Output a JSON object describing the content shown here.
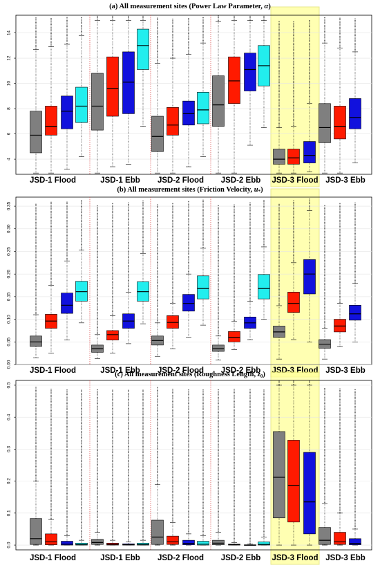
{
  "colors": {
    "gray": "#7f7f7f",
    "red": "#ff1a00",
    "blue": "#1111dd",
    "cyan": "#22eeee",
    "highlight_fill": "#ffff99",
    "highlight_stroke": "#e0e066",
    "separator": "#dd5555"
  },
  "chart_data": [
    {
      "type": "box",
      "title": "(a) All measurement sites (Power Law Parameter, ",
      "title_symbol": "α",
      "title_end": ")",
      "groups": [
        "JSD-1 Flood",
        "JSD-1 Ebb",
        "JSD-2 Flood",
        "JSD-2 Ebb",
        "JSD-3 Flood",
        "JSD-3 Ebb"
      ],
      "highlight_group": "JSD-3 Flood",
      "ylim": [
        2.8,
        15.4
      ],
      "yticks": [
        4,
        6,
        8,
        10,
        12,
        14
      ],
      "yticklabels": [
        "4",
        "6",
        "8",
        "10",
        "12",
        "14"
      ],
      "boxes": [
        {
          "group": 0,
          "color": "gray",
          "whisker_low": 2.9,
          "q1": 4.5,
          "median": 5.9,
          "q3": 7.8,
          "whisker_high": 12.7
        },
        {
          "group": 0,
          "color": "red",
          "whisker_low": 2.9,
          "q1": 5.9,
          "median": 6.6,
          "q3": 8.2,
          "whisker_high": 12.9
        },
        {
          "group": 0,
          "color": "blue",
          "whisker_low": 3.2,
          "q1": 6.4,
          "median": 7.8,
          "q3": 9.0,
          "whisker_high": 13.1
        },
        {
          "group": 0,
          "color": "cyan",
          "whisker_low": 4.2,
          "q1": 6.9,
          "median": 8.2,
          "q3": 9.7,
          "whisker_high": 13.8
        },
        {
          "group": 1,
          "color": "gray",
          "whisker_low": 2.9,
          "q1": 6.3,
          "median": 8.2,
          "q3": 10.8,
          "whisker_high": 15.0
        },
        {
          "group": 1,
          "color": "red",
          "whisker_low": 3.4,
          "q1": 7.4,
          "median": 9.6,
          "q3": 12.1,
          "whisker_high": 15.0
        },
        {
          "group": 1,
          "color": "blue",
          "whisker_low": 3.6,
          "q1": 7.6,
          "median": 10.1,
          "q3": 12.5,
          "whisker_high": 15.0
        },
        {
          "group": 1,
          "color": "cyan",
          "whisker_low": 6.6,
          "q1": 11.1,
          "median": 13.0,
          "q3": 14.3,
          "whisker_high": 15.0
        },
        {
          "group": 2,
          "color": "gray",
          "whisker_low": 2.9,
          "q1": 4.6,
          "median": 5.8,
          "q3": 7.4,
          "whisker_high": 11.6
        },
        {
          "group": 2,
          "color": "red",
          "whisker_low": 2.9,
          "q1": 5.9,
          "median": 6.7,
          "q3": 8.1,
          "whisker_high": 12.0
        },
        {
          "group": 2,
          "color": "blue",
          "whisker_low": 3.4,
          "q1": 6.7,
          "median": 7.6,
          "q3": 8.6,
          "whisker_high": 12.3
        },
        {
          "group": 2,
          "color": "cyan",
          "whisker_low": 4.2,
          "q1": 6.8,
          "median": 7.9,
          "q3": 9.3,
          "whisker_high": 13.2
        },
        {
          "group": 3,
          "color": "gray",
          "whisker_low": 2.9,
          "q1": 6.6,
          "median": 8.3,
          "q3": 10.6,
          "whisker_high": 14.9
        },
        {
          "group": 3,
          "color": "red",
          "whisker_low": 2.9,
          "q1": 8.4,
          "median": 10.2,
          "q3": 12.1,
          "whisker_high": 15.0
        },
        {
          "group": 3,
          "color": "blue",
          "whisker_low": 5.1,
          "q1": 9.4,
          "median": 11.1,
          "q3": 12.4,
          "whisker_high": 15.0
        },
        {
          "group": 3,
          "color": "cyan",
          "whisker_low": 6.5,
          "q1": 9.8,
          "median": 11.4,
          "q3": 13.0,
          "whisker_high": 15.0
        },
        {
          "group": 4,
          "color": "gray",
          "whisker_low": 2.9,
          "q1": 3.6,
          "median": 4.0,
          "q3": 4.8,
          "whisker_high": 6.5
        },
        {
          "group": 4,
          "color": "red",
          "whisker_low": 2.9,
          "q1": 3.6,
          "median": 4.1,
          "q3": 4.8,
          "whisker_high": 6.6
        },
        {
          "group": 4,
          "color": "blue",
          "whisker_low": 3.0,
          "q1": 3.7,
          "median": 4.3,
          "q3": 5.4,
          "whisker_high": 8.4
        },
        {
          "group": 5,
          "color": "gray",
          "whisker_low": 2.9,
          "q1": 5.3,
          "median": 6.5,
          "q3": 8.4,
          "whisker_high": 13.2
        },
        {
          "group": 5,
          "color": "red",
          "whisker_low": 2.9,
          "q1": 5.6,
          "median": 6.6,
          "q3": 8.2,
          "whisker_high": 12.8
        },
        {
          "group": 5,
          "color": "blue",
          "whisker_low": 3.7,
          "q1": 6.4,
          "median": 7.3,
          "q3": 8.8,
          "whisker_high": 12.5
        }
      ]
    },
    {
      "type": "box",
      "title": "(b) All measurement sites (Friction Velocity, ",
      "title_symbol": "u",
      "title_end": ")",
      "groups": [
        "JSD-1 Flood",
        "JSD-1 Ebb",
        "JSD-2 Flood",
        "JSD-2 Ebb",
        "JSD-3 Flood",
        "JSD-3 Ebb"
      ],
      "highlight_group": "JSD-3 Flood",
      "ylim": [
        0.0,
        0.37
      ],
      "yticks": [
        0.0,
        0.05,
        0.1,
        0.15,
        0.2,
        0.25,
        0.3,
        0.35
      ],
      "yticklabels": [
        "0.00",
        "0.05",
        "0.10",
        "0.15",
        "0.20",
        "0.25",
        "0.30",
        "0.35"
      ],
      "boxes": [
        {
          "group": 0,
          "color": "gray",
          "whisker_low": 0.015,
          "q1": 0.04,
          "median": 0.05,
          "q3": 0.063,
          "whisker_high": 0.11
        },
        {
          "group": 0,
          "color": "red",
          "whisker_low": 0.025,
          "q1": 0.08,
          "median": 0.096,
          "q3": 0.111,
          "whisker_high": 0.175
        },
        {
          "group": 0,
          "color": "blue",
          "whisker_low": 0.054,
          "q1": 0.113,
          "median": 0.131,
          "q3": 0.158,
          "whisker_high": 0.229
        },
        {
          "group": 0,
          "color": "cyan",
          "whisker_low": 0.092,
          "q1": 0.14,
          "median": 0.161,
          "q3": 0.184,
          "whisker_high": 0.253
        },
        {
          "group": 1,
          "color": "gray",
          "whisker_low": 0.013,
          "q1": 0.027,
          "median": 0.035,
          "q3": 0.043,
          "whisker_high": 0.066
        },
        {
          "group": 1,
          "color": "red",
          "whisker_low": 0.025,
          "q1": 0.054,
          "median": 0.066,
          "q3": 0.075,
          "whisker_high": 0.108
        },
        {
          "group": 1,
          "color": "blue",
          "whisker_low": 0.046,
          "q1": 0.08,
          "median": 0.096,
          "q3": 0.112,
          "whisker_high": 0.16
        },
        {
          "group": 1,
          "color": "cyan",
          "whisker_low": 0.09,
          "q1": 0.14,
          "median": 0.161,
          "q3": 0.183,
          "whisker_high": 0.245
        },
        {
          "group": 2,
          "color": "gray",
          "whisker_low": 0.018,
          "q1": 0.043,
          "median": 0.053,
          "q3": 0.063,
          "whisker_high": 0.092
        },
        {
          "group": 2,
          "color": "red",
          "whisker_low": 0.035,
          "q1": 0.08,
          "median": 0.093,
          "q3": 0.108,
          "whisker_high": 0.135
        },
        {
          "group": 2,
          "color": "blue",
          "whisker_low": 0.06,
          "q1": 0.118,
          "median": 0.135,
          "q3": 0.155,
          "whisker_high": 0.2
        },
        {
          "group": 2,
          "color": "cyan",
          "whisker_low": 0.087,
          "q1": 0.145,
          "median": 0.168,
          "q3": 0.196,
          "whisker_high": 0.257
        },
        {
          "group": 3,
          "color": "gray",
          "whisker_low": 0.01,
          "q1": 0.029,
          "median": 0.035,
          "q3": 0.043,
          "whisker_high": 0.063
        },
        {
          "group": 3,
          "color": "red",
          "whisker_low": 0.033,
          "q1": 0.05,
          "median": 0.06,
          "q3": 0.073,
          "whisker_high": 0.095
        },
        {
          "group": 3,
          "color": "blue",
          "whisker_low": 0.055,
          "q1": 0.08,
          "median": 0.092,
          "q3": 0.105,
          "whisker_high": 0.14
        },
        {
          "group": 3,
          "color": "cyan",
          "whisker_low": 0.1,
          "q1": 0.145,
          "median": 0.168,
          "q3": 0.199,
          "whisker_high": 0.26
        },
        {
          "group": 4,
          "color": "gray",
          "whisker_low": 0.012,
          "q1": 0.06,
          "median": 0.072,
          "q3": 0.085,
          "whisker_high": 0.13
        },
        {
          "group": 4,
          "color": "red",
          "whisker_low": 0.055,
          "q1": 0.115,
          "median": 0.135,
          "q3": 0.16,
          "whisker_high": 0.225
        },
        {
          "group": 4,
          "color": "blue",
          "whisker_low": 0.05,
          "q1": 0.156,
          "median": 0.2,
          "q3": 0.232,
          "whisker_high": 0.34
        },
        {
          "group": 5,
          "color": "gray",
          "whisker_low": 0.012,
          "q1": 0.036,
          "median": 0.045,
          "q3": 0.055,
          "whisker_high": 0.08
        },
        {
          "group": 5,
          "color": "red",
          "whisker_low": 0.04,
          "q1": 0.072,
          "median": 0.085,
          "q3": 0.1,
          "whisker_high": 0.135
        },
        {
          "group": 5,
          "color": "blue",
          "whisker_low": 0.05,
          "q1": 0.098,
          "median": 0.112,
          "q3": 0.131,
          "whisker_high": 0.18
        }
      ]
    },
    {
      "type": "box",
      "title": "(c) All measurement sites (Roughness Length, ",
      "title_symbol": "z",
      "title_end": ")",
      "groups": [
        "JSD-1 Flood",
        "JSD-1 Ebb",
        "JSD-2 Flood",
        "JSD-2 Ebb",
        "JSD-3 Flood",
        "JSD-3 Ebb"
      ],
      "highlight_group": "JSD-3 Flood",
      "ylim": [
        -0.015,
        0.515
      ],
      "yticks": [
        0.0,
        0.1,
        0.2,
        0.3,
        0.4,
        0.5
      ],
      "yticklabels": [
        "0.0",
        "0.1",
        "0.2",
        "0.3",
        "0.4",
        "0.5"
      ],
      "boxes": [
        {
          "group": 0,
          "color": "gray",
          "whisker_low": 0.0,
          "q1": 0.002,
          "median": 0.02,
          "q3": 0.083,
          "whisker_high": 0.2
        },
        {
          "group": 0,
          "color": "red",
          "whisker_low": 0.0,
          "q1": 0.001,
          "median": 0.01,
          "q3": 0.035,
          "whisker_high": 0.08
        },
        {
          "group": 0,
          "color": "blue",
          "whisker_low": 0.0,
          "q1": 0.0,
          "median": 0.003,
          "q3": 0.012,
          "whisker_high": 0.03
        },
        {
          "group": 0,
          "color": "cyan",
          "whisker_low": 0.0,
          "q1": 0.0,
          "median": 0.001,
          "q3": 0.006,
          "whisker_high": 0.015
        },
        {
          "group": 1,
          "color": "gray",
          "whisker_low": 0.0,
          "q1": 0.002,
          "median": 0.008,
          "q3": 0.018,
          "whisker_high": 0.04
        },
        {
          "group": 1,
          "color": "red",
          "whisker_low": 0.0,
          "q1": 0.0,
          "median": 0.002,
          "q3": 0.006,
          "whisker_high": 0.015
        },
        {
          "group": 1,
          "color": "blue",
          "whisker_low": 0.0,
          "q1": 0.0,
          "median": 0.001,
          "q3": 0.004,
          "whisker_high": 0.01
        },
        {
          "group": 1,
          "color": "cyan",
          "whisker_low": 0.0,
          "q1": 0.0,
          "median": 0.001,
          "q3": 0.006,
          "whisker_high": 0.015
        },
        {
          "group": 2,
          "color": "gray",
          "whisker_low": 0.0,
          "q1": 0.002,
          "median": 0.025,
          "q3": 0.078,
          "whisker_high": 0.19
        },
        {
          "group": 2,
          "color": "red",
          "whisker_low": 0.0,
          "q1": 0.002,
          "median": 0.01,
          "q3": 0.028,
          "whisker_high": 0.07
        },
        {
          "group": 2,
          "color": "blue",
          "whisker_low": 0.0,
          "q1": 0.001,
          "median": 0.005,
          "q3": 0.015,
          "whisker_high": 0.035
        },
        {
          "group": 2,
          "color": "cyan",
          "whisker_low": 0.0,
          "q1": 0.0,
          "median": 0.003,
          "q3": 0.012,
          "whisker_high": 0.03
        },
        {
          "group": 3,
          "color": "gray",
          "whisker_low": 0.0,
          "q1": 0.001,
          "median": 0.006,
          "q3": 0.015,
          "whisker_high": 0.04
        },
        {
          "group": 3,
          "color": "red",
          "whisker_low": 0.0,
          "q1": 0.0,
          "median": 0.001,
          "q3": 0.003,
          "whisker_high": 0.008
        },
        {
          "group": 3,
          "color": "blue",
          "whisker_low": 0.0,
          "q1": 0.0,
          "median": 0.0,
          "q3": 0.001,
          "whisker_high": 0.003
        },
        {
          "group": 3,
          "color": "cyan",
          "whisker_low": 0.0,
          "q1": 0.0,
          "median": 0.002,
          "q3": 0.01,
          "whisker_high": 0.025
        },
        {
          "group": 4,
          "color": "gray",
          "whisker_low": 0.0,
          "q1": 0.085,
          "median": 0.212,
          "q3": 0.355,
          "whisker_high": 0.5
        },
        {
          "group": 4,
          "color": "red",
          "whisker_low": 0.0,
          "q1": 0.072,
          "median": 0.187,
          "q3": 0.328,
          "whisker_high": 0.5
        },
        {
          "group": 4,
          "color": "blue",
          "whisker_low": 0.0,
          "q1": 0.035,
          "median": 0.135,
          "q3": 0.29,
          "whisker_high": 0.5
        },
        {
          "group": 5,
          "color": "gray",
          "whisker_low": 0.0,
          "q1": 0.002,
          "median": 0.015,
          "q3": 0.055,
          "whisker_high": 0.13
        },
        {
          "group": 5,
          "color": "red",
          "whisker_low": 0.0,
          "q1": 0.002,
          "median": 0.01,
          "q3": 0.04,
          "whisker_high": 0.1
        },
        {
          "group": 5,
          "color": "blue",
          "whisker_low": 0.0,
          "q1": 0.001,
          "median": 0.005,
          "q3": 0.02,
          "whisker_high": 0.05
        }
      ]
    }
  ]
}
